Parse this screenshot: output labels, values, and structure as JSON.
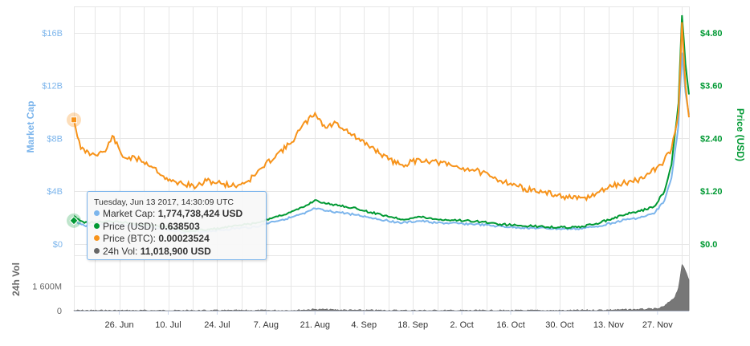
{
  "chart_data": {
    "type": "line",
    "y_axis_left": {
      "label": "Market Cap",
      "ticks": [
        "$0",
        "$4B",
        "$8B",
        "$12B",
        "$16B"
      ],
      "tick_values": [
        0,
        4000000000,
        8000000000,
        12000000000,
        16000000000
      ],
      "range": [
        0,
        18000000000
      ],
      "color": "#7cb5ec"
    },
    "y_axis_right": {
      "label": "Price (USD)",
      "ticks": [
        "$0.0",
        "$1.20",
        "$2.40",
        "$3.60",
        "$4.80"
      ],
      "tick_values": [
        0,
        1.2,
        2.4,
        3.6,
        4.8
      ],
      "range": [
        0,
        5.4
      ],
      "color": "#009933"
    },
    "volume_axis": {
      "label": "24h Vol",
      "ticks": [
        "0",
        "1 600M"
      ],
      "tick_values": [
        0,
        1600000000
      ],
      "range": [
        0,
        3600000000
      ]
    },
    "x_axis": {
      "ticks": [
        "26. Jun",
        "10. Jul",
        "24. Jul",
        "7. Aug",
        "21. Aug",
        "4. Sep",
        "18. Sep",
        "2. Oct",
        "16. Oct",
        "30. Oct",
        "13. Nov",
        "27. Nov"
      ],
      "range": [
        "2017-06-13",
        "2017-12-06"
      ]
    },
    "grid": true,
    "series": [
      {
        "name": "Market Cap",
        "axis": "left",
        "color": "#7cb5ec",
        "points": [
          [
            "2017-06-13",
            1774738424
          ],
          [
            "2017-06-16",
            1400000000
          ],
          [
            "2017-06-20",
            1450000000
          ],
          [
            "2017-06-25",
            1500000000
          ],
          [
            "2017-06-30",
            1350000000
          ],
          [
            "2017-07-05",
            1250000000
          ],
          [
            "2017-07-10",
            1100000000
          ],
          [
            "2017-07-15",
            900000000
          ],
          [
            "2017-07-20",
            950000000
          ],
          [
            "2017-07-25",
            1050000000
          ],
          [
            "2017-07-30",
            1200000000
          ],
          [
            "2017-08-04",
            1300000000
          ],
          [
            "2017-08-09",
            1700000000
          ],
          [
            "2017-08-14",
            2000000000
          ],
          [
            "2017-08-18",
            2300000000
          ],
          [
            "2017-08-21",
            2700000000
          ],
          [
            "2017-08-24",
            2500000000
          ],
          [
            "2017-08-28",
            2400000000
          ],
          [
            "2017-09-02",
            2200000000
          ],
          [
            "2017-09-06",
            2000000000
          ],
          [
            "2017-09-10",
            1800000000
          ],
          [
            "2017-09-15",
            1600000000
          ],
          [
            "2017-09-20",
            1750000000
          ],
          [
            "2017-09-25",
            1600000000
          ],
          [
            "2017-10-01",
            1550000000
          ],
          [
            "2017-10-06",
            1500000000
          ],
          [
            "2017-10-12",
            1350000000
          ],
          [
            "2017-10-18",
            1250000000
          ],
          [
            "2017-10-24",
            1200000000
          ],
          [
            "2017-10-30",
            1150000000
          ],
          [
            "2017-11-04",
            1150000000
          ],
          [
            "2017-11-09",
            1300000000
          ],
          [
            "2017-11-14",
            1600000000
          ],
          [
            "2017-11-18",
            1850000000
          ],
          [
            "2017-11-22",
            2000000000
          ],
          [
            "2017-11-26",
            2300000000
          ],
          [
            "2017-11-29",
            3300000000
          ],
          [
            "2017-12-01",
            5000000000
          ],
          [
            "2017-12-03",
            9000000000
          ],
          [
            "2017-12-04",
            14500000000
          ],
          [
            "2017-12-05",
            11500000000
          ],
          [
            "2017-12-06",
            9800000000
          ]
        ]
      },
      {
        "name": "Price (USD)",
        "axis": "right",
        "color": "#009933",
        "points": [
          [
            "2017-06-13",
            0.638503
          ],
          [
            "2017-06-16",
            0.48
          ],
          [
            "2017-06-20",
            0.5
          ],
          [
            "2017-06-25",
            0.52
          ],
          [
            "2017-06-30",
            0.47
          ],
          [
            "2017-07-05",
            0.43
          ],
          [
            "2017-07-10",
            0.38
          ],
          [
            "2017-07-15",
            0.3
          ],
          [
            "2017-07-20",
            0.32
          ],
          [
            "2017-07-25",
            0.36
          ],
          [
            "2017-07-30",
            0.42
          ],
          [
            "2017-08-04",
            0.47
          ],
          [
            "2017-08-09",
            0.6
          ],
          [
            "2017-08-14",
            0.72
          ],
          [
            "2017-08-18",
            0.85
          ],
          [
            "2017-08-21",
            1.0
          ],
          [
            "2017-08-24",
            0.92
          ],
          [
            "2017-08-28",
            0.88
          ],
          [
            "2017-09-02",
            0.8
          ],
          [
            "2017-09-06",
            0.72
          ],
          [
            "2017-09-10",
            0.65
          ],
          [
            "2017-09-15",
            0.56
          ],
          [
            "2017-09-20",
            0.62
          ],
          [
            "2017-09-25",
            0.56
          ],
          [
            "2017-10-01",
            0.54
          ],
          [
            "2017-10-06",
            0.52
          ],
          [
            "2017-10-12",
            0.46
          ],
          [
            "2017-10-18",
            0.42
          ],
          [
            "2017-10-24",
            0.4
          ],
          [
            "2017-10-30",
            0.38
          ],
          [
            "2017-11-04",
            0.38
          ],
          [
            "2017-11-09",
            0.45
          ],
          [
            "2017-11-14",
            0.58
          ],
          [
            "2017-11-18",
            0.68
          ],
          [
            "2017-11-22",
            0.75
          ],
          [
            "2017-11-26",
            0.85
          ],
          [
            "2017-11-29",
            1.2
          ],
          [
            "2017-12-01",
            1.8
          ],
          [
            "2017-12-03",
            3.2
          ],
          [
            "2017-12-04",
            5.2
          ],
          [
            "2017-12-05",
            4.1
          ],
          [
            "2017-12-06",
            3.4
          ]
        ]
      },
      {
        "name": "Price (BTC)",
        "axis": "hidden",
        "color": "#f7931a",
        "points": [
          [
            "2017-06-13",
            0.00023524
          ],
          [
            "2017-06-15",
            0.00018
          ],
          [
            "2017-06-18",
            0.00017
          ],
          [
            "2017-06-22",
            0.000175
          ],
          [
            "2017-06-24",
            0.000205
          ],
          [
            "2017-06-27",
            0.000165
          ],
          [
            "2017-07-02",
            0.00016
          ],
          [
            "2017-07-06",
            0.000145
          ],
          [
            "2017-07-10",
            0.00012
          ],
          [
            "2017-07-14",
            0.000115
          ],
          [
            "2017-07-18",
            0.000108
          ],
          [
            "2017-07-21",
            0.00012
          ],
          [
            "2017-07-25",
            0.000115
          ],
          [
            "2017-07-29",
            0.00011
          ],
          [
            "2017-08-02",
            0.00012
          ],
          [
            "2017-08-06",
            0.000145
          ],
          [
            "2017-08-10",
            0.00017
          ],
          [
            "2017-08-14",
            0.00019
          ],
          [
            "2017-08-17",
            0.00022
          ],
          [
            "2017-08-21",
            0.000248
          ],
          [
            "2017-08-24",
            0.00022
          ],
          [
            "2017-08-27",
            0.00023
          ],
          [
            "2017-08-31",
            0.00021
          ],
          [
            "2017-09-03",
            0.000195
          ],
          [
            "2017-09-07",
            0.00018
          ],
          [
            "2017-09-11",
            0.00016
          ],
          [
            "2017-09-15",
            0.00015
          ],
          [
            "2017-09-20",
            0.00016
          ],
          [
            "2017-09-25",
            0.000155
          ],
          [
            "2017-10-01",
            0.000145
          ],
          [
            "2017-10-06",
            0.00014
          ],
          [
            "2017-10-11",
            0.000125
          ],
          [
            "2017-10-16",
            0.000115
          ],
          [
            "2017-10-20",
            0.000105
          ],
          [
            "2017-10-25",
            9.8e-05
          ],
          [
            "2017-10-31",
            9e-05
          ],
          [
            "2017-11-04",
            8.5e-05
          ],
          [
            "2017-11-08",
            9e-05
          ],
          [
            "2017-11-13",
            0.000108
          ],
          [
            "2017-11-17",
            0.000115
          ],
          [
            "2017-11-21",
            0.00012
          ],
          [
            "2017-11-25",
            0.000135
          ],
          [
            "2017-11-28",
            0.00015
          ],
          [
            "2017-12-01",
            0.00018
          ],
          [
            "2017-12-03",
            0.00025
          ],
          [
            "2017-12-04",
            0.00042
          ],
          [
            "2017-12-05",
            0.0003
          ],
          [
            "2017-12-06",
            0.00024
          ]
        ]
      },
      {
        "name": "24h Vol",
        "axis": "volume",
        "color": "#666666",
        "points": [
          [
            "2017-06-13",
            11018900
          ],
          [
            "2017-06-20",
            12000000
          ],
          [
            "2017-07-01",
            10000000
          ],
          [
            "2017-07-15",
            9000000
          ],
          [
            "2017-08-01",
            11000000
          ],
          [
            "2017-08-15",
            20000000
          ],
          [
            "2017-08-21",
            90000000
          ],
          [
            "2017-09-01",
            30000000
          ],
          [
            "2017-09-15",
            15000000
          ],
          [
            "2017-10-01",
            12000000
          ],
          [
            "2017-10-15",
            10000000
          ],
          [
            "2017-11-01",
            12000000
          ],
          [
            "2017-11-10",
            40000000
          ],
          [
            "2017-11-16",
            60000000
          ],
          [
            "2017-11-20",
            80000000
          ],
          [
            "2017-11-24",
            100000000
          ],
          [
            "2017-11-27",
            120000000
          ],
          [
            "2017-11-29",
            300000000
          ],
          [
            "2017-12-01",
            700000000
          ],
          [
            "2017-12-02",
            900000000
          ],
          [
            "2017-12-03",
            1500000000
          ],
          [
            "2017-12-04",
            3000000000
          ],
          [
            "2017-12-05",
            2600000000
          ],
          [
            "2017-12-06",
            2000000000
          ]
        ]
      }
    ],
    "tooltip": {
      "header": "Tuesday, Jun 13 2017, 14:30:09 UTC",
      "rows": [
        {
          "label": "Market Cap:",
          "value": "1,774,738,424 USD",
          "color": "#7cb5ec"
        },
        {
          "label": "Price (USD):",
          "value": "0.638503",
          "color": "#009933"
        },
        {
          "label": "Price (BTC):",
          "value": "0.00023524",
          "color": "#f7931a"
        },
        {
          "label": "24h Vol:",
          "value": "11,018,900 USD",
          "color": "#666666"
        }
      ]
    }
  }
}
